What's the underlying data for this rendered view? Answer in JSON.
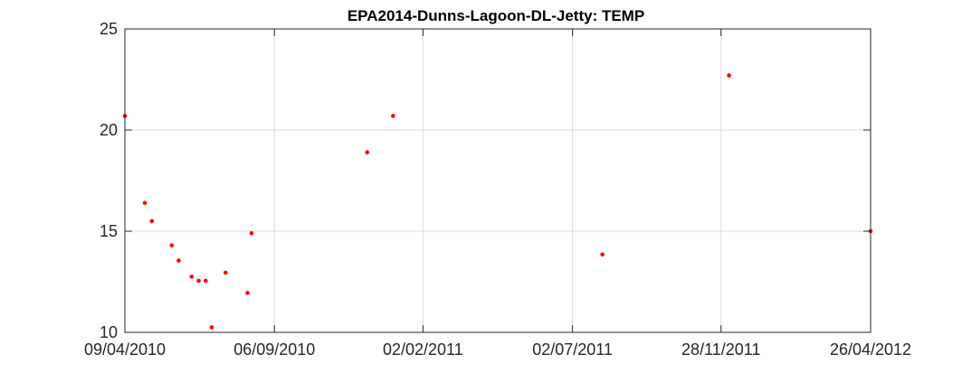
{
  "chart_data": {
    "type": "scatter",
    "title": "EPA2014-Dunns-Lagoon-DL-Jetty: TEMP",
    "xlabel": "",
    "ylabel": "",
    "x_type": "date",
    "xlim": [
      "2010-04-09",
      "2012-04-26"
    ],
    "ylim": [
      10,
      25
    ],
    "x_ticks": [
      {
        "date": "2010-04-09",
        "label": "09/04/2010"
      },
      {
        "date": "2010-09-06",
        "label": "06/09/2010"
      },
      {
        "date": "2011-02-02",
        "label": "02/02/2011"
      },
      {
        "date": "2011-07-02",
        "label": "02/07/2011"
      },
      {
        "date": "2011-11-28",
        "label": "28/11/2011"
      },
      {
        "date": "2012-04-26",
        "label": "26/04/2012"
      }
    ],
    "y_ticks": [
      {
        "value": 10,
        "label": "10"
      },
      {
        "value": 15,
        "label": "15"
      },
      {
        "value": 20,
        "label": "20"
      },
      {
        "value": 25,
        "label": "25"
      }
    ],
    "grid": true,
    "marker_color": "#ff0000",
    "series": [
      {
        "points": [
          {
            "x": "2010-04-09",
            "y": 20.7
          },
          {
            "x": "2010-04-29",
            "y": 16.4
          },
          {
            "x": "2010-05-06",
            "y": 15.5
          },
          {
            "x": "2010-05-26",
            "y": 14.3
          },
          {
            "x": "2010-06-02",
            "y": 13.55
          },
          {
            "x": "2010-06-15",
            "y": 12.75
          },
          {
            "x": "2010-06-22",
            "y": 12.55
          },
          {
            "x": "2010-06-29",
            "y": 12.55
          },
          {
            "x": "2010-07-05",
            "y": 10.25
          },
          {
            "x": "2010-07-19",
            "y": 12.95
          },
          {
            "x": "2010-08-10",
            "y": 11.95
          },
          {
            "x": "2010-08-14",
            "y": 14.9
          },
          {
            "x": "2010-12-08",
            "y": 18.9
          },
          {
            "x": "2011-01-03",
            "y": 20.7
          },
          {
            "x": "2011-08-01",
            "y": 13.85
          },
          {
            "x": "2011-12-06",
            "y": 22.7
          },
          {
            "x": "2012-04-26",
            "y": 15.0
          }
        ]
      }
    ]
  }
}
